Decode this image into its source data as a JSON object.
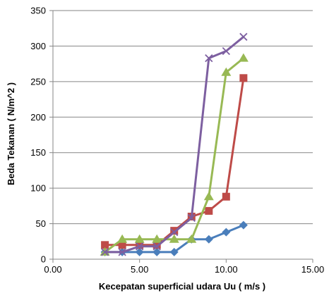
{
  "chart_data": {
    "type": "line",
    "xlabel": "Kecepatan superficial udara Uu ( m/s )",
    "ylabel": "Beda Tekanan ( N/m^2 )",
    "xlim": [
      0,
      15
    ],
    "ylim": [
      0,
      350
    ],
    "x_ticks": [
      "0.00",
      "5.00",
      "10.00",
      "15.00"
    ],
    "y_ticks": [
      "0",
      "50",
      "100",
      "150",
      "200",
      "250",
      "300",
      "350"
    ],
    "grid": "horizontal",
    "legend": "none",
    "series": [
      {
        "color": "#4a7ebb",
        "marker": "diamond",
        "points": [
          [
            3,
            10
          ],
          [
            4,
            10
          ],
          [
            5,
            10
          ],
          [
            6,
            10
          ],
          [
            7,
            10
          ],
          [
            8,
            28
          ],
          [
            9,
            28
          ],
          [
            10,
            38
          ],
          [
            11,
            48
          ]
        ]
      },
      {
        "color": "#be4b48",
        "marker": "square",
        "points": [
          [
            3,
            20
          ],
          [
            4,
            20
          ],
          [
            5,
            20
          ],
          [
            6,
            20
          ],
          [
            7,
            40
          ],
          [
            8,
            60
          ],
          [
            9,
            68
          ],
          [
            10,
            88
          ],
          [
            11,
            255
          ]
        ]
      },
      {
        "color": "#98b954",
        "marker": "triangle",
        "points": [
          [
            3,
            10
          ],
          [
            4,
            28
          ],
          [
            5,
            28
          ],
          [
            6,
            28
          ],
          [
            7,
            28
          ],
          [
            8,
            28
          ],
          [
            9,
            88
          ],
          [
            10,
            263
          ],
          [
            11,
            283
          ]
        ]
      },
      {
        "color": "#7d5fa0",
        "marker": "x",
        "points": [
          [
            3,
            10
          ],
          [
            4,
            10
          ],
          [
            5,
            18
          ],
          [
            6,
            18
          ],
          [
            7,
            38
          ],
          [
            8,
            58
          ],
          [
            9,
            283
          ],
          [
            10,
            293
          ],
          [
            11,
            313
          ]
        ]
      }
    ]
  }
}
